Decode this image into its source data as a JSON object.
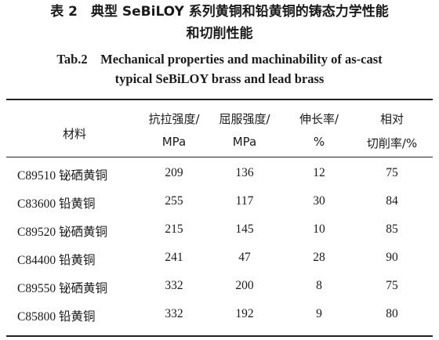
{
  "caption": {
    "cn_line1": "表 2　典型 SeBiLOY 系列黄铜和铅黄铜的铸态力学性能",
    "cn_line2": "和切削性能",
    "en_line1": "Tab.2　Mechanical properties and machinability of as-cast",
    "en_line2": "typical SeBiLOY brass and lead brass"
  },
  "headers": {
    "material": "材料",
    "tensile_line1": "抗拉强度/",
    "tensile_line2": "MPa",
    "yield_line1": "屈服强度/",
    "yield_line2": "MPa",
    "elongation_line1": "伸长率/",
    "elongation_line2": "%",
    "machinability_line1": "相对",
    "machinability_line2": "切削率/%"
  },
  "rows": [
    {
      "material": "C89510 铋硒黄铜",
      "tensile": "209",
      "yield": "136",
      "elongation": "12",
      "machinability": "75"
    },
    {
      "material": "C83600 铅黄铜",
      "tensile": "255",
      "yield": "117",
      "elongation": "30",
      "machinability": "84"
    },
    {
      "material": "C89520 铋硒黄铜",
      "tensile": "215",
      "yield": "145",
      "elongation": "10",
      "machinability": "85"
    },
    {
      "material": "C84400 铅黄铜",
      "tensile": "241",
      "yield": "47",
      "elongation": "28",
      "machinability": "90"
    },
    {
      "material": "C89550 铋硒黄铜",
      "tensile": "332",
      "yield": "200",
      "elongation": "8",
      "machinability": "75"
    },
    {
      "material": "C85800 铅黄铜",
      "tensile": "332",
      "yield": "192",
      "elongation": "9",
      "machinability": "80"
    }
  ]
}
